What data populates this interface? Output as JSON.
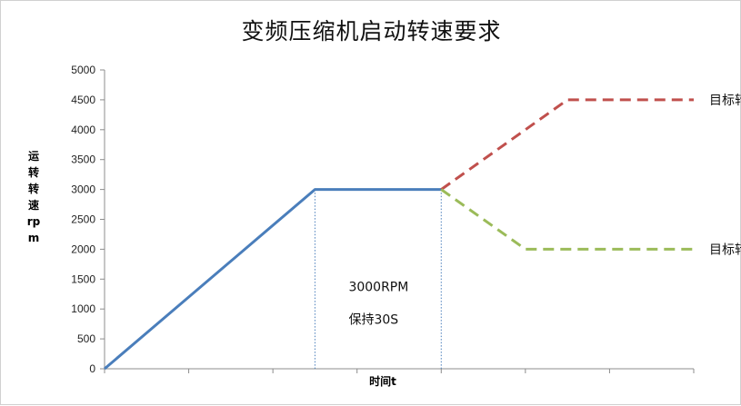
{
  "chart_data": {
    "type": "line",
    "title": "变频压缩机启动转速要求",
    "xlabel": "时间t",
    "ylabel": "运转转速rpm",
    "ylim": [
      0,
      5000
    ],
    "yticks": [
      0,
      500,
      1000,
      1500,
      2000,
      2500,
      3000,
      3500,
      4000,
      4500,
      5000
    ],
    "xlim": [
      0,
      7
    ],
    "grid": false,
    "series": [
      {
        "name": "",
        "style": "solid",
        "color": "#4a7ebb",
        "x": [
          0,
          2.5,
          4.0
        ],
        "y": [
          0,
          3000,
          3000
        ]
      },
      {
        "name": "目标转速",
        "style": "dashed",
        "color": "#c0504d",
        "x": [
          4.0,
          5.5,
          7.0
        ],
        "y": [
          3000,
          4500,
          4500
        ]
      },
      {
        "name": "目标转速",
        "style": "dashed",
        "color": "#9bbb59",
        "x": [
          4.0,
          5.0,
          7.0
        ],
        "y": [
          3000,
          2000,
          2000
        ]
      }
    ],
    "annotations": [
      {
        "text": "3000RPM",
        "x": 2.9,
        "y": 1300
      },
      {
        "text": "保持30S",
        "x": 2.9,
        "y": 750
      }
    ],
    "guides": [
      {
        "x": 2.5,
        "y": 3000,
        "color": "#4a7ebb",
        "style": "dotted"
      },
      {
        "x": 4.0,
        "y": 3000,
        "color": "#4a7ebb",
        "style": "dotted"
      }
    ]
  }
}
